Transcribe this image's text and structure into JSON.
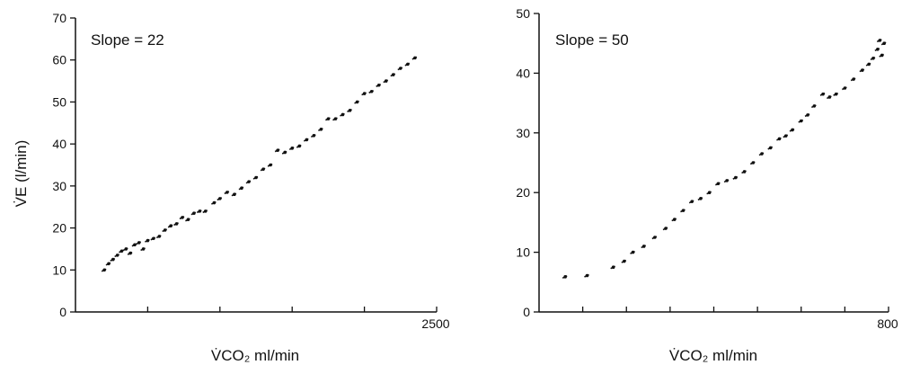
{
  "chart_data": [
    {
      "type": "scatter",
      "annotation": "Slope = 22",
      "ylabel": "V̇E (l/min)",
      "xlabel": "V̇CO₂ ml/min",
      "xlim": [
        0,
        2500
      ],
      "ylim": [
        0,
        70
      ],
      "yticks": [
        "0",
        "10",
        "20",
        "30",
        "40",
        "50",
        "60",
        "70"
      ],
      "xticks_minor": [
        500,
        1000,
        1500,
        2000
      ],
      "xtick_label": "2500",
      "grid": false,
      "series": [
        {
          "x": [
            200,
            230,
            260,
            290,
            320,
            350,
            380,
            410,
            440,
            470,
            500,
            540,
            580,
            620,
            660,
            700,
            740,
            780,
            820,
            860,
            900,
            960,
            1000,
            1050,
            1100,
            1150,
            1200,
            1250,
            1300,
            1350,
            1400,
            1450,
            1500,
            1550,
            1600,
            1650,
            1700,
            1750,
            1800,
            1850,
            1900,
            1950,
            2000,
            2050,
            2100,
            2150,
            2200,
            2250,
            2300,
            2350
          ],
          "y": [
            10,
            11.5,
            12.5,
            13.5,
            14.5,
            15,
            14,
            16,
            16.5,
            15,
            17,
            17.5,
            18,
            19.5,
            20.5,
            21,
            22.5,
            22,
            23.5,
            24,
            24,
            26,
            27,
            28.5,
            28,
            29.5,
            31,
            32,
            34,
            35,
            38.5,
            38,
            39,
            39.5,
            41,
            42,
            43.5,
            46,
            46,
            47,
            48,
            50,
            52,
            52.5,
            54,
            55,
            56.5,
            58,
            59,
            60.5
          ]
        }
      ]
    },
    {
      "type": "scatter",
      "annotation": "Slope = 50",
      "ylabel": "",
      "xlabel": "V̇CO₂ ml/min",
      "xlim": [
        0,
        800
      ],
      "ylim": [
        0,
        50
      ],
      "yticks": [
        "0",
        "10",
        "20",
        "30",
        "40",
        "50"
      ],
      "xticks_minor": [
        100,
        200,
        300,
        400,
        500,
        600,
        700
      ],
      "xtick_label": "800",
      "grid": false,
      "series": [
        {
          "x": [
            60,
            110,
            170,
            195,
            215,
            240,
            265,
            290,
            310,
            330,
            350,
            370,
            390,
            410,
            430,
            450,
            470,
            490,
            510,
            530,
            550,
            565,
            580,
            600,
            615,
            630,
            650,
            665,
            680,
            700,
            720,
            740,
            755,
            765,
            775,
            780,
            785,
            790
          ],
          "y": [
            5.9,
            6.1,
            7.5,
            8.5,
            10,
            11,
            12.5,
            14,
            15.5,
            17,
            18.5,
            19,
            20,
            21.5,
            22,
            22.5,
            23.5,
            25,
            26.5,
            27.5,
            29,
            29.5,
            30.5,
            32,
            33,
            34.5,
            36.5,
            36,
            36.5,
            37.5,
            39,
            40.5,
            41.5,
            42.5,
            44,
            45.5,
            43,
            45
          ]
        }
      ]
    }
  ]
}
